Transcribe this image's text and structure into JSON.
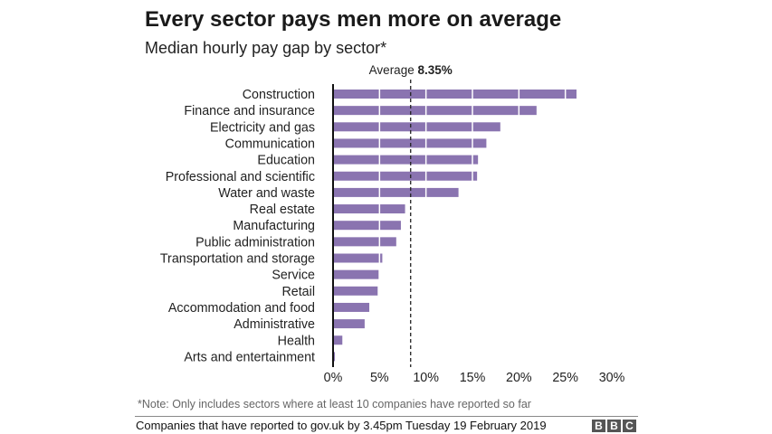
{
  "chart_data": {
    "type": "bar",
    "orientation": "horizontal",
    "title": "Every sector pays men more on average",
    "subtitle": "Median hourly pay gap by sector*",
    "categories": [
      "Construction",
      "Finance and insurance",
      "Electricity and gas",
      "Communication",
      "Education",
      "Professional and scientific",
      "Water and waste",
      "Real estate",
      "Manufacturing",
      "Public administration",
      "Transportation and storage",
      "Service",
      "Retail",
      "Accommodation and food",
      "Administrative",
      "Health",
      "Arts and entertainment"
    ],
    "values": [
      26.2,
      21.9,
      18.0,
      16.5,
      15.6,
      15.5,
      13.5,
      7.75,
      7.3,
      6.8,
      5.3,
      4.9,
      4.8,
      3.9,
      3.4,
      1.0,
      0.2
    ],
    "xlim": [
      0,
      30
    ],
    "xticks": [
      0,
      5,
      10,
      15,
      20,
      25,
      30
    ],
    "xtick_labels": [
      "0%",
      "5%",
      "10%",
      "15%",
      "20%",
      "25%",
      "30%"
    ],
    "xlabel": "",
    "ylabel": "",
    "grid": "white lines at 5% intervals over bars",
    "reference_line": {
      "value": 8.35,
      "label_prefix": "Average",
      "label_value": "8.35%"
    },
    "bar_color": "#8a74b0"
  },
  "note": "*Note: Only includes sectors where at least 10 companies have reported so far",
  "source": "Companies that have reported to gov.uk by 3.45pm Tuesday 19 February 2019",
  "logo": [
    "B",
    "B",
    "C"
  ]
}
